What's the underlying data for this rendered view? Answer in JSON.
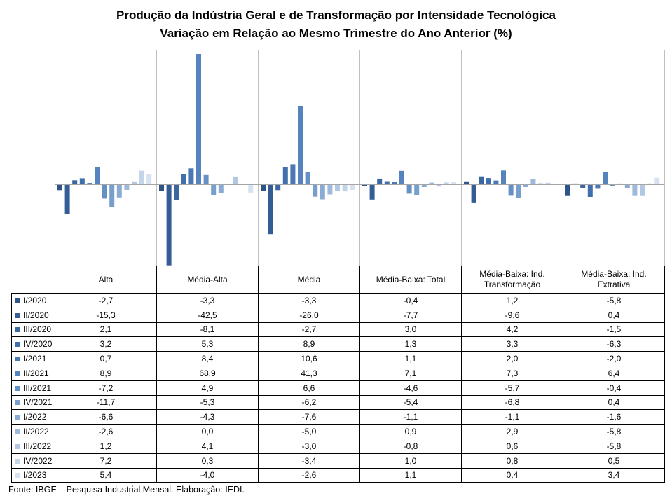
{
  "chart_data": {
    "type": "bar",
    "title": "Produção da Indústria Geral e de Transformação por Intensidade Tecnológica",
    "subtitle": "Variação em Relação ao Mesmo Trimestre do Ano Anterior (%)",
    "categories": [
      "Alta",
      "Média-Alta",
      "Média",
      "Média-Baixa: Total",
      "Média-Baixa: Ind. Transformação",
      "Média-Baixa: Ind. Extrativa"
    ],
    "category_labels": [
      [
        "Alta"
      ],
      [
        "Média-Alta"
      ],
      [
        "Média"
      ],
      [
        "Média-Baixa: Total"
      ],
      [
        "Média-Baixa: Ind.",
        "Transformação"
      ],
      [
        "Média-Baixa: Ind.",
        "Extrativa"
      ]
    ],
    "value_labels": [
      [
        "-2,7",
        "-3,3",
        "-3,3",
        "-0,4",
        "1,2",
        "-5,8"
      ],
      [
        "-15,3",
        "-42,5",
        "-26,0",
        "-7,7",
        "-9,6",
        "0,4"
      ],
      [
        "2,1",
        "-8,1",
        "-2,7",
        "3,0",
        "4,2",
        "-1,5"
      ],
      [
        "3,2",
        "5,3",
        "8,9",
        "1,3",
        "3,3",
        "-6,3"
      ],
      [
        "0,7",
        "8,4",
        "10,6",
        "1,1",
        "2,0",
        "-2,0"
      ],
      [
        "8,9",
        "68,9",
        "41,3",
        "7,1",
        "7,3",
        "6,4"
      ],
      [
        "-7,2",
        "4,9",
        "6,6",
        "-4,6",
        "-5,7",
        "-0,4"
      ],
      [
        "-11,7",
        "-5,3",
        "-6,2",
        "-5,4",
        "-6,8",
        "0,4"
      ],
      [
        "-6,6",
        "-4,3",
        "-7,6",
        "-1,1",
        "-1,1",
        "-1,6"
      ],
      [
        "-2,6",
        "0,0",
        "-5,0",
        "0,9",
        "2,9",
        "-5,8"
      ],
      [
        "1,2",
        "4,1",
        "-3,0",
        "-0,8",
        "0,6",
        "-5,8"
      ],
      [
        "7,2",
        "0,3",
        "-3,4",
        "1,0",
        "0,8",
        "0,5"
      ],
      [
        "5,4",
        "-4,0",
        "-2,6",
        "1,1",
        "0,4",
        "3,4"
      ]
    ],
    "series": [
      {
        "name": "I/2020",
        "color": "#2e5488",
        "values": [
          -2.7,
          -3.3,
          -3.3,
          -0.4,
          1.2,
          -5.8
        ]
      },
      {
        "name": "II/2020",
        "color": "#345d96",
        "values": [
          -15.3,
          -42.5,
          -26.0,
          -7.7,
          -9.6,
          0.4
        ]
      },
      {
        "name": "III/2020",
        "color": "#3a66a2",
        "values": [
          2.1,
          -8.1,
          -2.7,
          3.0,
          4.2,
          -1.5
        ]
      },
      {
        "name": "IV/2020",
        "color": "#416fac",
        "values": [
          3.2,
          5.3,
          8.9,
          1.3,
          3.3,
          -6.3
        ]
      },
      {
        "name": "I/2021",
        "color": "#4a78b5",
        "values": [
          0.7,
          8.4,
          10.6,
          1.1,
          2.0,
          -2.0
        ]
      },
      {
        "name": "II/2021",
        "color": "#5583bd",
        "values": [
          8.9,
          68.9,
          41.3,
          7.1,
          7.3,
          6.4
        ]
      },
      {
        "name": "III/2021",
        "color": "#6590c5",
        "values": [
          -7.2,
          4.9,
          6.6,
          -4.6,
          -5.7,
          -0.4
        ]
      },
      {
        "name": "IV/2021",
        "color": "#779ecd",
        "values": [
          -11.7,
          -5.3,
          -6.2,
          -5.4,
          -6.8,
          0.4
        ]
      },
      {
        "name": "I/2022",
        "color": "#8aacd4",
        "values": [
          -6.6,
          -4.3,
          -7.6,
          -1.1,
          -1.1,
          -1.6
        ]
      },
      {
        "name": "II/2022",
        "color": "#9db9dc",
        "values": [
          -2.6,
          0.0,
          -5.0,
          0.9,
          2.9,
          -5.8
        ]
      },
      {
        "name": "III/2022",
        "color": "#b1c7e3",
        "values": [
          1.2,
          4.1,
          -3.0,
          -0.8,
          0.6,
          -5.8
        ]
      },
      {
        "name": "IV/2022",
        "color": "#c4d5ea",
        "values": [
          7.2,
          0.3,
          -3.4,
          1.0,
          0.8,
          0.5
        ]
      },
      {
        "name": "I/2023",
        "color": "#d6e2f1",
        "values": [
          5.4,
          -4.0,
          -2.6,
          1.1,
          0.4,
          3.4
        ]
      }
    ],
    "ylim": [
      -42.5,
      68.9
    ],
    "grid": false,
    "legend": "table-left",
    "axis_color": "#a6a6a6",
    "gridline_color": "#bfbfbf"
  },
  "source": "Fonte: IBGE – Pesquisa Industrial Mensal. Elaboração: IEDI."
}
